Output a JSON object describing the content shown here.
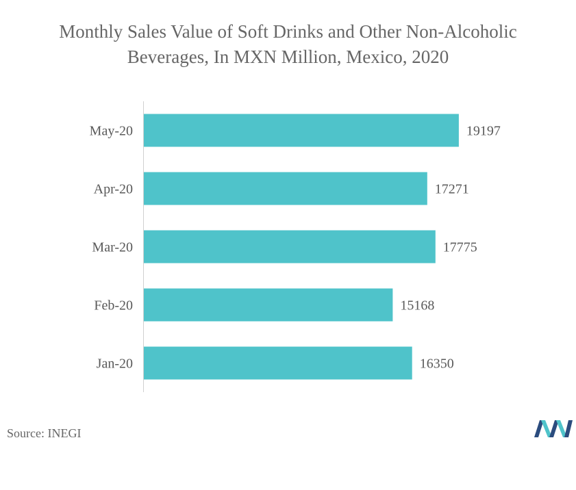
{
  "title_line1": "Monthly Sales Value of Soft Drinks and Other Non-Alcoholic",
  "title_line2": "Beverages, In MXN Million, Mexico, 2020",
  "source": "Source: INEGI",
  "colors": {
    "bar": "#4fc3ca",
    "text": "#595959",
    "axis": "#d0d0d0",
    "logo_dark": "#2b4c7e",
    "logo_teal": "#4fc3ca"
  },
  "chart_data": {
    "type": "bar",
    "orientation": "horizontal",
    "categories": [
      "May-20",
      "Apr-20",
      "Mar-20",
      "Feb-20",
      "Jan-20"
    ],
    "values": [
      19197,
      17271,
      17775,
      15168,
      16350
    ],
    "title": "Monthly Sales Value of Soft Drinks and Other Non-Alcoholic Beverages, In MXN Million, Mexico, 2020",
    "xlim": [
      0,
      23000
    ],
    "data_labels": true,
    "grid": false,
    "legend": "none"
  }
}
